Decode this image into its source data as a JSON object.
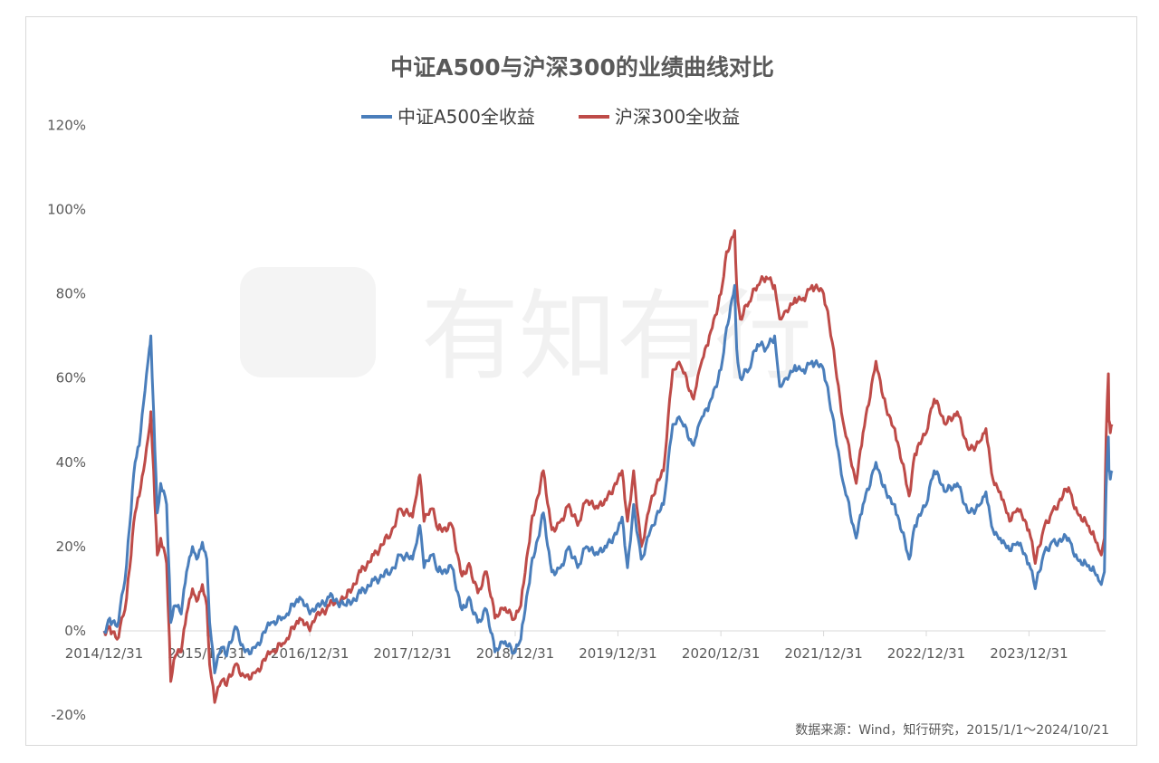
{
  "chart_data": {
    "type": "line",
    "title": "中证A500与沪深300的业绩曲线对比",
    "source": "数据来源：Wind，知行研究，2015/1/1～2024/10/21",
    "watermark": "有知有行",
    "xlabel": "",
    "ylabel": "",
    "x_ticks": [
      "2014/12/31",
      "2015/12/31",
      "2016/12/31",
      "2017/12/31",
      "2018/12/31",
      "2019/12/31",
      "2020/12/31",
      "2021/12/31",
      "2022/12/31",
      "2023/12/31"
    ],
    "y_ticks": [
      "-20%",
      "0%",
      "20%",
      "40%",
      "60%",
      "80%",
      "100%",
      "120%"
    ],
    "ylim": [
      -20,
      120
    ],
    "xlim": [
      "2014/12/31",
      "2024/10/21"
    ],
    "grid": false,
    "legend_position": "top-center",
    "series": [
      {
        "name": "中证A500全收益",
        "color": "#4a7ebb",
        "points": [
          [
            "2014/12/31",
            0
          ],
          [
            "2015/01/20",
            3
          ],
          [
            "2015/02/15",
            1
          ],
          [
            "2015/03/15",
            12
          ],
          [
            "2015/04/01",
            25
          ],
          [
            "2015/04/20",
            40
          ],
          [
            "2015/05/05",
            44
          ],
          [
            "2015/05/20",
            54
          ],
          [
            "2015/06/10",
            67
          ],
          [
            "2015/06/15",
            70
          ],
          [
            "2015/06/25",
            52
          ],
          [
            "2015/07/08",
            28
          ],
          [
            "2015/07/20",
            35
          ],
          [
            "2015/08/10",
            30
          ],
          [
            "2015/08/25",
            2
          ],
          [
            "2015/09/10",
            6
          ],
          [
            "2015/10/01",
            4
          ],
          [
            "2015/10/20",
            14
          ],
          [
            "2015/11/10",
            20
          ],
          [
            "2015/11/25",
            17
          ],
          [
            "2015/12/15",
            21
          ],
          [
            "2015/12/31",
            17
          ],
          [
            "2016/01/10",
            2
          ],
          [
            "2016/01/28",
            -10
          ],
          [
            "2016/02/20",
            -4
          ],
          [
            "2016/03/10",
            -6
          ],
          [
            "2016/04/10",
            1
          ],
          [
            "2016/05/15",
            -5
          ],
          [
            "2016/06/20",
            -4
          ],
          [
            "2016/08/15",
            2
          ],
          [
            "2016/10/01",
            3
          ],
          [
            "2016/11/25",
            8
          ],
          [
            "2016/12/31",
            4
          ],
          [
            "2017/01/20",
            5
          ],
          [
            "2017/03/10",
            8
          ],
          [
            "2017/05/10",
            6
          ],
          [
            "2017/06/30",
            9
          ],
          [
            "2017/08/15",
            12
          ],
          [
            "2017/10/15",
            14
          ],
          [
            "2017/11/15",
            18
          ],
          [
            "2017/12/31",
            17
          ],
          [
            "2018/01/20",
            23
          ],
          [
            "2018/01/26",
            25
          ],
          [
            "2018/02/10",
            15
          ],
          [
            "2018/03/10",
            18
          ],
          [
            "2018/04/01",
            14
          ],
          [
            "2018/05/20",
            15
          ],
          [
            "2018/06/25",
            5
          ],
          [
            "2018/07/20",
            8
          ],
          [
            "2018/08/20",
            2
          ],
          [
            "2018/09/20",
            5
          ],
          [
            "2018/10/20",
            -5
          ],
          [
            "2018/11/20",
            -3
          ],
          [
            "2018/12/31",
            -5
          ],
          [
            "2019/01/20",
            -2
          ],
          [
            "2019/02/25",
            15
          ],
          [
            "2019/04/10",
            28
          ],
          [
            "2019/05/10",
            14
          ],
          [
            "2019/06/10",
            15
          ],
          [
            "2019/07/10",
            20
          ],
          [
            "2019/08/10",
            15
          ],
          [
            "2019/09/10",
            20
          ],
          [
            "2019/10/10",
            18
          ],
          [
            "2019/11/10",
            19
          ],
          [
            "2019/12/31",
            24
          ],
          [
            "2020/01/15",
            27
          ],
          [
            "2020/02/03",
            15
          ],
          [
            "2020/02/25",
            30
          ],
          [
            "2020/03/23",
            17
          ],
          [
            "2020/04/30",
            25
          ],
          [
            "2020/06/10",
            30
          ],
          [
            "2020/07/13",
            49
          ],
          [
            "2020/08/10",
            50
          ],
          [
            "2020/09/25",
            44
          ],
          [
            "2020/10/20",
            50
          ],
          [
            "2020/11/20",
            54
          ],
          [
            "2020/12/31",
            62
          ],
          [
            "2021/01/20",
            72
          ],
          [
            "2021/02/18",
            82
          ],
          [
            "2021/02/25",
            67
          ],
          [
            "2021/03/10",
            60
          ],
          [
            "2021/04/10",
            62
          ],
          [
            "2021/05/10",
            68
          ],
          [
            "2021/06/10",
            67
          ],
          [
            "2021/07/10",
            70
          ],
          [
            "2021/07/28",
            58
          ],
          [
            "2021/08/20",
            60
          ],
          [
            "2021/09/20",
            63
          ],
          [
            "2021/10/20",
            62
          ],
          [
            "2021/11/20",
            64
          ],
          [
            "2021/12/31",
            62
          ],
          [
            "2022/01/20",
            55
          ],
          [
            "2022/03/15",
            34
          ],
          [
            "2022/04/26",
            22
          ],
          [
            "2022/05/20",
            30
          ],
          [
            "2022/07/05",
            40
          ],
          [
            "2022/08/10",
            33
          ],
          [
            "2022/09/10",
            30
          ],
          [
            "2022/10/31",
            17
          ],
          [
            "2022/11/20",
            25
          ],
          [
            "2022/12/31",
            30
          ],
          [
            "2023/01/28",
            38
          ],
          [
            "2023/03/10",
            33
          ],
          [
            "2023/04/20",
            35
          ],
          [
            "2023/05/31",
            28
          ],
          [
            "2023/07/10",
            30
          ],
          [
            "2023/07/31",
            33
          ],
          [
            "2023/08/25",
            24
          ],
          [
            "2023/09/20",
            22
          ],
          [
            "2023/10/23",
            19
          ],
          [
            "2023/11/20",
            21
          ],
          [
            "2023/12/31",
            16
          ],
          [
            "2024/01/22",
            10
          ],
          [
            "2024/02/20",
            18
          ],
          [
            "2024/03/20",
            21
          ],
          [
            "2024/05/20",
            22
          ],
          [
            "2024/06/20",
            17
          ],
          [
            "2024/07/20",
            16
          ],
          [
            "2024/08/20",
            14
          ],
          [
            "2024/09/13",
            11
          ],
          [
            "2024/09/24",
            14
          ],
          [
            "2024/09/30",
            34
          ],
          [
            "2024/10/08",
            46
          ],
          [
            "2024/10/10",
            38
          ],
          [
            "2024/10/15",
            36
          ],
          [
            "2024/10/21",
            38
          ]
        ]
      },
      {
        "name": "沪深300全收益",
        "color": "#be4b48",
        "points": [
          [
            "2014/12/31",
            0
          ],
          [
            "2015/01/20",
            1
          ],
          [
            "2015/02/15",
            -2
          ],
          [
            "2015/03/15",
            5
          ],
          [
            "2015/04/01",
            15
          ],
          [
            "2015/04/20",
            28
          ],
          [
            "2015/05/05",
            32
          ],
          [
            "2015/05/20",
            38
          ],
          [
            "2015/06/10",
            48
          ],
          [
            "2015/06/15",
            52
          ],
          [
            "2015/06/25",
            38
          ],
          [
            "2015/07/08",
            18
          ],
          [
            "2015/07/20",
            22
          ],
          [
            "2015/08/10",
            16
          ],
          [
            "2015/08/25",
            -12
          ],
          [
            "2015/09/10",
            -6
          ],
          [
            "2015/10/01",
            -5
          ],
          [
            "2015/10/20",
            4
          ],
          [
            "2015/11/10",
            10
          ],
          [
            "2015/11/25",
            7
          ],
          [
            "2015/12/15",
            11
          ],
          [
            "2015/12/31",
            6
          ],
          [
            "2016/01/10",
            -8
          ],
          [
            "2016/01/28",
            -17
          ],
          [
            "2016/02/20",
            -12
          ],
          [
            "2016/03/10",
            -13
          ],
          [
            "2016/04/10",
            -8
          ],
          [
            "2016/05/15",
            -11
          ],
          [
            "2016/06/20",
            -10
          ],
          [
            "2016/08/15",
            -5
          ],
          [
            "2016/10/01",
            -3
          ],
          [
            "2016/11/25",
            3
          ],
          [
            "2016/12/31",
            0
          ],
          [
            "2017/01/20",
            3
          ],
          [
            "2017/03/10",
            6
          ],
          [
            "2017/05/10",
            8
          ],
          [
            "2017/06/30",
            14
          ],
          [
            "2017/08/15",
            18
          ],
          [
            "2017/10/15",
            23
          ],
          [
            "2017/11/15",
            29
          ],
          [
            "2017/12/31",
            27
          ],
          [
            "2018/01/20",
            35
          ],
          [
            "2018/01/26",
            37
          ],
          [
            "2018/02/10",
            26
          ],
          [
            "2018/03/10",
            29
          ],
          [
            "2018/04/01",
            24
          ],
          [
            "2018/05/20",
            25
          ],
          [
            "2018/06/25",
            13
          ],
          [
            "2018/07/20",
            16
          ],
          [
            "2018/08/20",
            9
          ],
          [
            "2018/09/20",
            14
          ],
          [
            "2018/10/20",
            3
          ],
          [
            "2018/11/20",
            5
          ],
          [
            "2018/12/31",
            3
          ],
          [
            "2019/01/20",
            6
          ],
          [
            "2019/02/25",
            25
          ],
          [
            "2019/04/10",
            38
          ],
          [
            "2019/05/10",
            24
          ],
          [
            "2019/06/10",
            26
          ],
          [
            "2019/07/10",
            30
          ],
          [
            "2019/08/10",
            25
          ],
          [
            "2019/09/10",
            31
          ],
          [
            "2019/10/10",
            29
          ],
          [
            "2019/11/10",
            30
          ],
          [
            "2019/12/31",
            36
          ],
          [
            "2020/01/15",
            38
          ],
          [
            "2020/02/03",
            26
          ],
          [
            "2020/02/25",
            38
          ],
          [
            "2020/03/23",
            20
          ],
          [
            "2020/04/30",
            32
          ],
          [
            "2020/06/10",
            38
          ],
          [
            "2020/07/13",
            62
          ],
          [
            "2020/08/10",
            63
          ],
          [
            "2020/09/25",
            55
          ],
          [
            "2020/10/20",
            63
          ],
          [
            "2020/11/20",
            70
          ],
          [
            "2020/12/31",
            80
          ],
          [
            "2021/01/20",
            90
          ],
          [
            "2021/02/18",
            95
          ],
          [
            "2021/02/25",
            82
          ],
          [
            "2021/03/10",
            74
          ],
          [
            "2021/04/10",
            78
          ],
          [
            "2021/05/10",
            82
          ],
          [
            "2021/06/10",
            84
          ],
          [
            "2021/07/10",
            82
          ],
          [
            "2021/07/28",
            74
          ],
          [
            "2021/08/20",
            76
          ],
          [
            "2021/09/20",
            79
          ],
          [
            "2021/10/20",
            79
          ],
          [
            "2021/11/20",
            82
          ],
          [
            "2021/12/31",
            80
          ],
          [
            "2022/01/20",
            73
          ],
          [
            "2022/03/15",
            48
          ],
          [
            "2022/04/26",
            35
          ],
          [
            "2022/05/20",
            47
          ],
          [
            "2022/07/05",
            64
          ],
          [
            "2022/08/10",
            53
          ],
          [
            "2022/09/10",
            48
          ],
          [
            "2022/10/31",
            32
          ],
          [
            "2022/11/20",
            42
          ],
          [
            "2022/12/31",
            47
          ],
          [
            "2023/01/28",
            55
          ],
          [
            "2023/03/10",
            49
          ],
          [
            "2023/04/20",
            52
          ],
          [
            "2023/05/31",
            43
          ],
          [
            "2023/07/10",
            45
          ],
          [
            "2023/07/31",
            48
          ],
          [
            "2023/08/25",
            36
          ],
          [
            "2023/09/20",
            33
          ],
          [
            "2023/10/23",
            26
          ],
          [
            "2023/11/20",
            29
          ],
          [
            "2023/12/31",
            24
          ],
          [
            "2024/01/22",
            16
          ],
          [
            "2024/02/20",
            24
          ],
          [
            "2024/03/20",
            28
          ],
          [
            "2024/05/20",
            34
          ],
          [
            "2024/06/20",
            28
          ],
          [
            "2024/07/20",
            26
          ],
          [
            "2024/08/20",
            22
          ],
          [
            "2024/09/13",
            18
          ],
          [
            "2024/09/24",
            22
          ],
          [
            "2024/09/30",
            46
          ],
          [
            "2024/10/08",
            61
          ],
          [
            "2024/10/10",
            50
          ],
          [
            "2024/10/15",
            47
          ],
          [
            "2024/10/21",
            49
          ]
        ]
      }
    ]
  }
}
